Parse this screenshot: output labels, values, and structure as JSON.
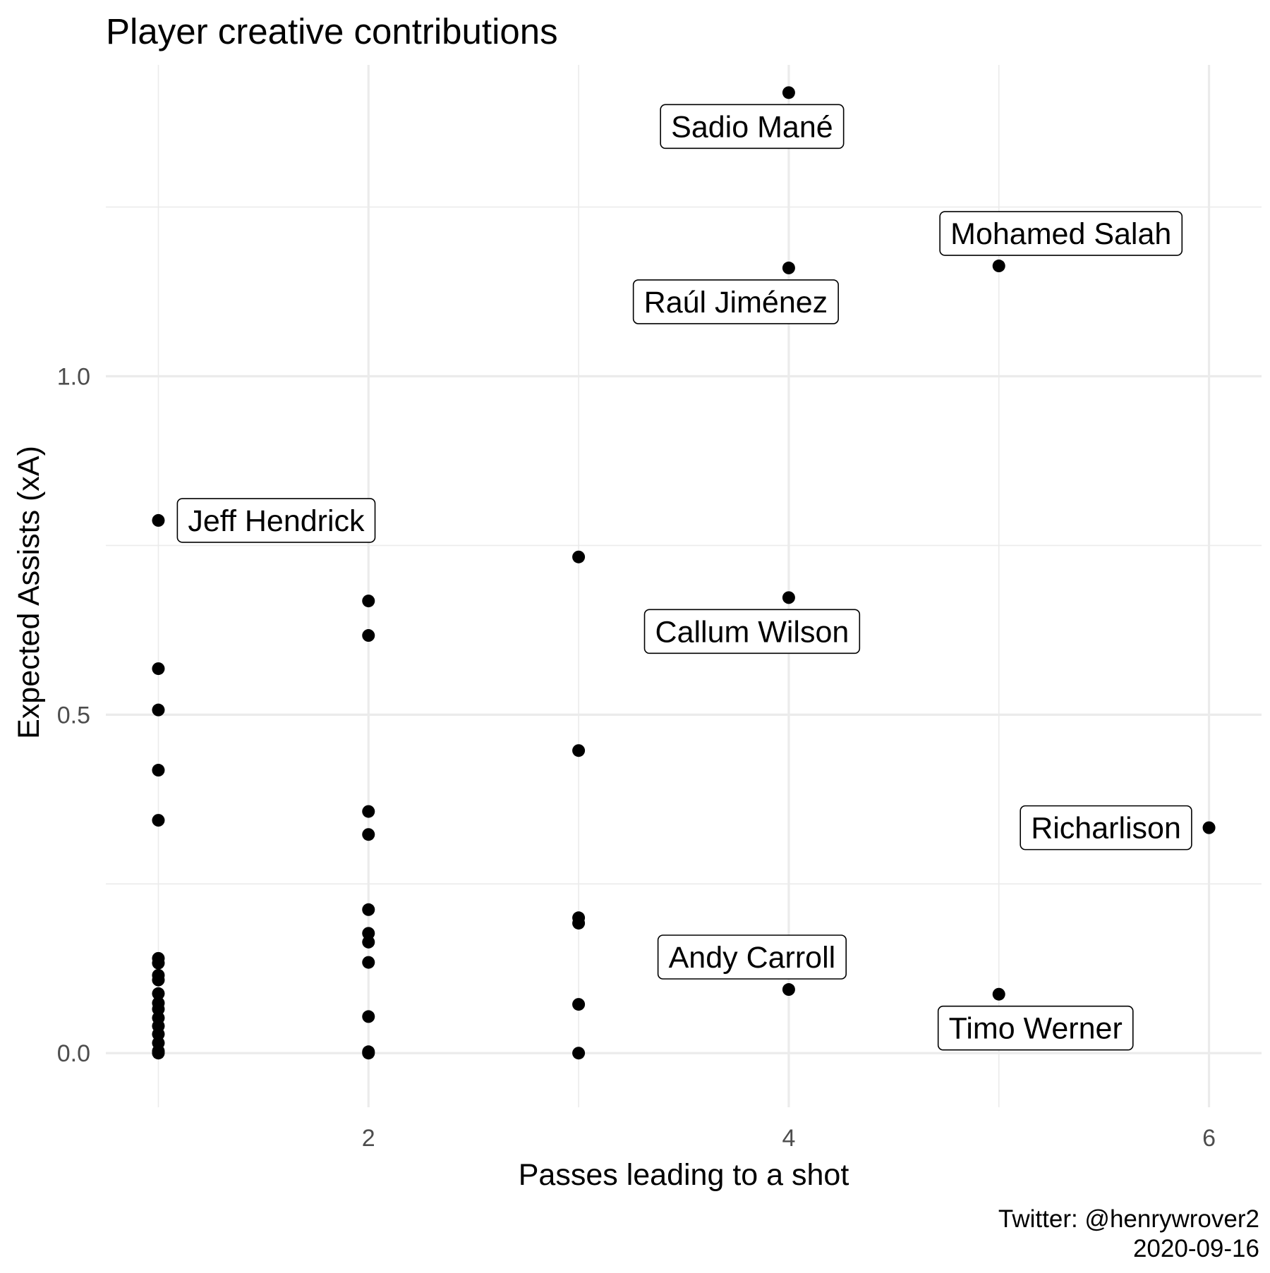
{
  "chart_data": {
    "type": "scatter",
    "title": "Player creative contributions",
    "xlabel": "Passes leading to a shot",
    "ylabel": "Expected Assists (xA)",
    "caption": [
      "Twitter: @henrywrover2",
      "2020-09-16"
    ],
    "xlim": [
      0.75,
      6.25
    ],
    "ylim": [
      -0.08,
      1.46
    ],
    "x_ticks": [
      2,
      4,
      6
    ],
    "x_tick_labels": [
      "2",
      "4",
      "6"
    ],
    "y_ticks": [
      0.0,
      0.5,
      1.0
    ],
    "y_tick_labels": [
      "0.0",
      "0.5",
      "1.0"
    ],
    "grid": true,
    "legend": "none",
    "point_color": "#000000",
    "points": [
      {
        "x": 1,
        "y": 0.787,
        "label": "Jeff Hendrick"
      },
      {
        "x": 1,
        "y": 0.568
      },
      {
        "x": 1,
        "y": 0.507
      },
      {
        "x": 1,
        "y": 0.418
      },
      {
        "x": 1,
        "y": 0.344
      },
      {
        "x": 1,
        "y": 0.14
      },
      {
        "x": 1,
        "y": 0.133
      },
      {
        "x": 1,
        "y": 0.115
      },
      {
        "x": 1,
        "y": 0.108
      },
      {
        "x": 1,
        "y": 0.088
      },
      {
        "x": 1,
        "y": 0.074
      },
      {
        "x": 1,
        "y": 0.065
      },
      {
        "x": 1,
        "y": 0.052
      },
      {
        "x": 1,
        "y": 0.04
      },
      {
        "x": 1,
        "y": 0.028
      },
      {
        "x": 1,
        "y": 0.015
      },
      {
        "x": 1,
        "y": 0.003
      },
      {
        "x": 1,
        "y": 0.0
      },
      {
        "x": 2,
        "y": 0.668
      },
      {
        "x": 2,
        "y": 0.617
      },
      {
        "x": 2,
        "y": 0.357
      },
      {
        "x": 2,
        "y": 0.323
      },
      {
        "x": 2,
        "y": 0.212
      },
      {
        "x": 2,
        "y": 0.177
      },
      {
        "x": 2,
        "y": 0.164
      },
      {
        "x": 2,
        "y": 0.134
      },
      {
        "x": 2,
        "y": 0.054
      },
      {
        "x": 2,
        "y": 0.002
      },
      {
        "x": 2,
        "y": 0.0
      },
      {
        "x": 3,
        "y": 0.733
      },
      {
        "x": 3,
        "y": 0.447
      },
      {
        "x": 3,
        "y": 0.2
      },
      {
        "x": 3,
        "y": 0.192
      },
      {
        "x": 3,
        "y": 0.072
      },
      {
        "x": 3,
        "y": 0.0
      },
      {
        "x": 4,
        "y": 1.419,
        "label": "Sadio Mané"
      },
      {
        "x": 4,
        "y": 1.16,
        "label": "Raúl Jiménez"
      },
      {
        "x": 4,
        "y": 0.673,
        "label": "Callum Wilson"
      },
      {
        "x": 4,
        "y": 0.094,
        "label": "Andy Carroll"
      },
      {
        "x": 5,
        "y": 1.163,
        "label": "Mohamed Salah"
      },
      {
        "x": 5,
        "y": 0.087,
        "label": "Timo Werner"
      },
      {
        "x": 6,
        "y": 0.333,
        "label": "Richarlison"
      }
    ]
  }
}
